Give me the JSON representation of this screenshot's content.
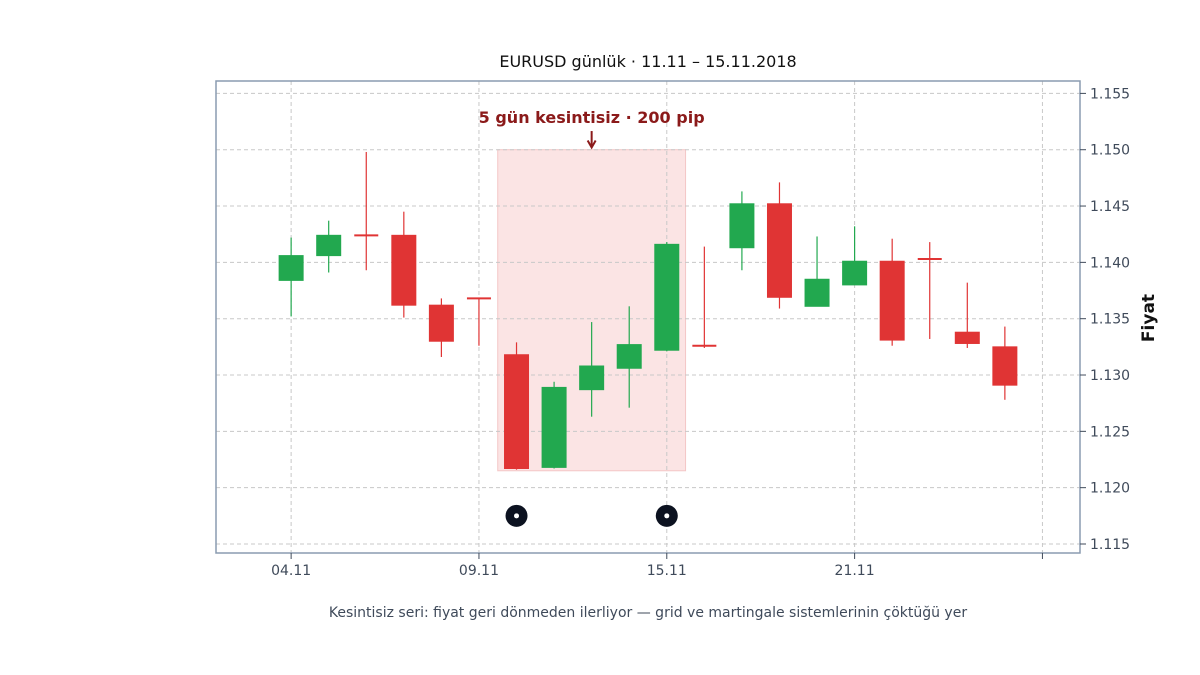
{
  "chart_data": {
    "type": "candlestick",
    "title": "EURUSD günlük · 11.11 – 15.11.2018",
    "ylabel": "Fiyat",
    "xlabel": "",
    "caption": "Kesintisiz seri: fiyat geri dönmeden ilerliyor — grid ve martingale sistemlerinin çöktüğü yer",
    "ylim": [
      1.1142,
      1.1561
    ],
    "xlim": [
      0,
      23
    ],
    "grid": true,
    "x_ticks": [
      {
        "index": 2,
        "label": "04.11"
      },
      {
        "index": 7,
        "label": "09.11"
      },
      {
        "index": 12,
        "label": "15.11"
      },
      {
        "index": 17,
        "label": "21.11"
      },
      {
        "index": 22,
        "label": ""
      }
    ],
    "y_ticks": [
      1.115,
      1.12,
      1.125,
      1.13,
      1.135,
      1.14,
      1.145,
      1.15,
      1.155
    ],
    "y_tick_labels": [
      "1.115",
      "1.120",
      "1.125",
      "1.130",
      "1.135",
      "1.140",
      "1.145",
      "1.150",
      "1.155"
    ],
    "candles": [
      {
        "i": 2,
        "open": 1.1384,
        "close": 1.1406,
        "high": 1.1422,
        "low": 1.1352
      },
      {
        "i": 3,
        "open": 1.1406,
        "close": 1.1424,
        "high": 1.1437,
        "low": 1.1391
      },
      {
        "i": 4,
        "open": 1.1424,
        "close": 1.1424,
        "high": 1.1498,
        "low": 1.1393
      },
      {
        "i": 5,
        "open": 1.1424,
        "close": 1.1362,
        "high": 1.1445,
        "low": 1.1351
      },
      {
        "i": 6,
        "open": 1.1362,
        "close": 1.133,
        "high": 1.1368,
        "low": 1.1316
      },
      {
        "i": 7,
        "open": 1.1368,
        "close": 1.1368,
        "high": 1.1368,
        "low": 1.1326
      },
      {
        "i": 8,
        "open": 1.1318,
        "close": 1.1217,
        "high": 1.1329,
        "low": 1.1216
      },
      {
        "i": 9,
        "open": 1.1218,
        "close": 1.1289,
        "high": 1.1294,
        "low": 1.1217
      },
      {
        "i": 10,
        "open": 1.1287,
        "close": 1.1308,
        "high": 1.1347,
        "low": 1.1263
      },
      {
        "i": 11,
        "open": 1.1306,
        "close": 1.1327,
        "high": 1.1361,
        "low": 1.1271
      },
      {
        "i": 12,
        "open": 1.1322,
        "close": 1.1416,
        "high": 1.1418,
        "low": 1.1321
      },
      {
        "i": 13,
        "open": 1.1326,
        "close": 1.1326,
        "high": 1.1414,
        "low": 1.1324
      },
      {
        "i": 14,
        "open": 1.1413,
        "close": 1.1452,
        "high": 1.1463,
        "low": 1.1393
      },
      {
        "i": 15,
        "open": 1.1452,
        "close": 1.1369,
        "high": 1.1471,
        "low": 1.1359
      },
      {
        "i": 16,
        "open": 1.1361,
        "close": 1.1385,
        "high": 1.1423,
        "low": 1.1361
      },
      {
        "i": 17,
        "open": 1.138,
        "close": 1.1401,
        "high": 1.1432,
        "low": 1.138
      },
      {
        "i": 18,
        "open": 1.1401,
        "close": 1.1331,
        "high": 1.1421,
        "low": 1.1326
      },
      {
        "i": 19,
        "open": 1.1403,
        "close": 1.1403,
        "high": 1.1418,
        "low": 1.1332
      },
      {
        "i": 20,
        "open": 1.1338,
        "close": 1.1328,
        "high": 1.1382,
        "low": 1.1324
      },
      {
        "i": 21,
        "open": 1.1325,
        "close": 1.1291,
        "high": 1.1343,
        "low": 1.1278
      }
    ],
    "highlight": {
      "x_start": 7.5,
      "x_end": 12.5,
      "y_start": 1.1215,
      "y_end": 1.15
    },
    "annotation": {
      "text": "5 gün kesintisiz · 200 pip",
      "x": 10,
      "y": 1.1529,
      "arrow_to_y": 1.1502
    },
    "markers": [
      {
        "i": 8,
        "y": 1.1175
      },
      {
        "i": 12,
        "y": 1.1175
      }
    ],
    "colors": {
      "up": "#22a84f",
      "down": "#e03434",
      "highlight": "#fbe4e4",
      "annotation": "#8b1a1a",
      "frame": "#8a9bb0",
      "grid": "#c8c8c8",
      "marker": "#0c1220"
    }
  }
}
